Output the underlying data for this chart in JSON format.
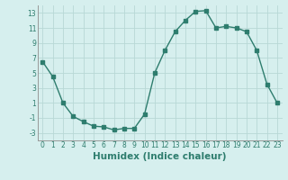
{
  "x": [
    0,
    1,
    2,
    3,
    4,
    5,
    6,
    7,
    8,
    9,
    10,
    11,
    12,
    13,
    14,
    15,
    16,
    17,
    18,
    19,
    20,
    21,
    22,
    23
  ],
  "y": [
    6.5,
    4.5,
    1.0,
    -0.8,
    -1.5,
    -2.1,
    -2.2,
    -2.6,
    -2.4,
    -2.4,
    -0.5,
    5.0,
    8.0,
    10.5,
    12.0,
    13.2,
    13.3,
    11.0,
    11.2,
    11.0,
    10.5,
    8.0,
    3.5,
    1.0
  ],
  "line_color": "#2e7d6e",
  "marker": "s",
  "marker_size": 2.2,
  "line_width": 1.0,
  "xlabel": "Humidex (Indice chaleur)",
  "xlim": [
    -0.5,
    23.5
  ],
  "ylim": [
    -4,
    14
  ],
  "yticks": [
    -3,
    -1,
    1,
    3,
    5,
    7,
    9,
    11,
    13
  ],
  "xticks": [
    0,
    1,
    2,
    3,
    4,
    5,
    6,
    7,
    8,
    9,
    10,
    11,
    12,
    13,
    14,
    15,
    16,
    17,
    18,
    19,
    20,
    21,
    22,
    23
  ],
  "bg_color": "#d6efee",
  "grid_color": "#b8d8d6",
  "tick_fontsize": 5.5,
  "label_fontsize": 7.5
}
